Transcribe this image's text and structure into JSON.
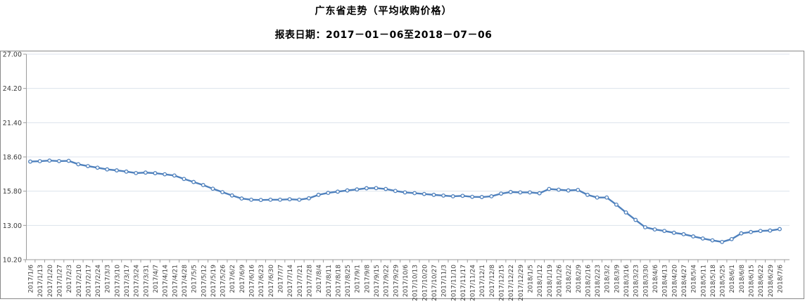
{
  "page": {
    "background": "#ffffff"
  },
  "header": {
    "title": "广东省走势（平均收购价格）",
    "subtitle": "报表日期：2017－01－06至2018－07－06"
  },
  "chart_data": {
    "type": "line",
    "title": "广东省走势（平均收购价格）",
    "subtitle": "报表日期：2017－01－06至2018－07－06",
    "xlabel": "",
    "ylabel": "",
    "ylim": [
      10.2,
      27.0
    ],
    "yticks": [
      27.0,
      24.2,
      21.4,
      18.6,
      15.8,
      13.0,
      10.2
    ],
    "grid": true,
    "legend": "none",
    "series_name": "平均收购价格",
    "line_color": "#4F81BD",
    "marker_style": "open-circle",
    "categories": [
      "2017/1/6",
      "2017/1/13",
      "2017/1/20",
      "2017/1/27",
      "2017/2/3",
      "2017/2/10",
      "2017/2/17",
      "2017/2/24",
      "2017/3/3",
      "2017/3/10",
      "2017/3/17",
      "2017/3/24",
      "2017/3/31",
      "2017/4/7",
      "2017/4/14",
      "2017/4/21",
      "2017/4/28",
      "2017/5/5",
      "2017/5/12",
      "2017/5/19",
      "2017/5/26",
      "2017/6/2",
      "2017/6/9",
      "2017/6/16",
      "2017/6/23",
      "2017/6/30",
      "2017/7/7",
      "2017/7/14",
      "2017/7/21",
      "2017/7/28",
      "2017/8/4",
      "2017/8/11",
      "2017/8/18",
      "2017/8/25",
      "2017/9/1",
      "2017/9/8",
      "2017/9/15",
      "2017/9/22",
      "2017/9/29",
      "2017/10/6",
      "2017/10/13",
      "2017/10/20",
      "2017/10/27",
      "2017/11/3",
      "2017/11/10",
      "2017/11/17",
      "2017/11/24",
      "2017/12/1",
      "2017/12/8",
      "2017/12/15",
      "2017/12/22",
      "2017/12/29",
      "2018/1/5",
      "2018/1/12",
      "2018/1/19",
      "2018/1/26",
      "2018/2/2",
      "2018/2/9",
      "2018/2/16",
      "2018/2/23",
      "2018/3/2",
      "2018/3/9",
      "2018/3/16",
      "2018/3/23",
      "2018/3/30",
      "2018/4/6",
      "2018/4/13",
      "2018/4/20",
      "2018/4/27",
      "2018/5/4",
      "2018/5/11",
      "2018/5/18",
      "2018/5/25",
      "2018/6/1",
      "2018/6/8",
      "2018/6/15",
      "2018/6/22",
      "2018/6/29",
      "2018/7/6"
    ],
    "values": [
      18.22,
      18.25,
      18.3,
      18.26,
      18.28,
      18.0,
      17.85,
      17.72,
      17.58,
      17.5,
      17.4,
      17.28,
      17.32,
      17.27,
      17.18,
      17.08,
      16.8,
      16.55,
      16.3,
      16.0,
      15.72,
      15.45,
      15.2,
      15.1,
      15.08,
      15.1,
      15.1,
      15.14,
      15.1,
      15.22,
      15.5,
      15.66,
      15.76,
      15.86,
      15.94,
      16.04,
      16.05,
      15.98,
      15.82,
      15.7,
      15.64,
      15.57,
      15.5,
      15.44,
      15.38,
      15.42,
      15.34,
      15.32,
      15.38,
      15.6,
      15.73,
      15.7,
      15.7,
      15.63,
      15.98,
      15.92,
      15.86,
      15.9,
      15.5,
      15.28,
      15.28,
      14.7,
      14.06,
      13.45,
      12.85,
      12.67,
      12.55,
      12.4,
      12.28,
      12.1,
      11.93,
      11.78,
      11.65,
      11.88,
      12.35,
      12.46,
      12.55,
      12.58,
      12.7
    ]
  },
  "style": {
    "grid_color": "#dce3ec",
    "axis_color": "#9b9b9b",
    "border_color": "#8a8a8a",
    "xlabel_color": "#3f3f3f",
    "ylabel_color": "#3a3a3a",
    "marker_fill": "#ffffff"
  }
}
